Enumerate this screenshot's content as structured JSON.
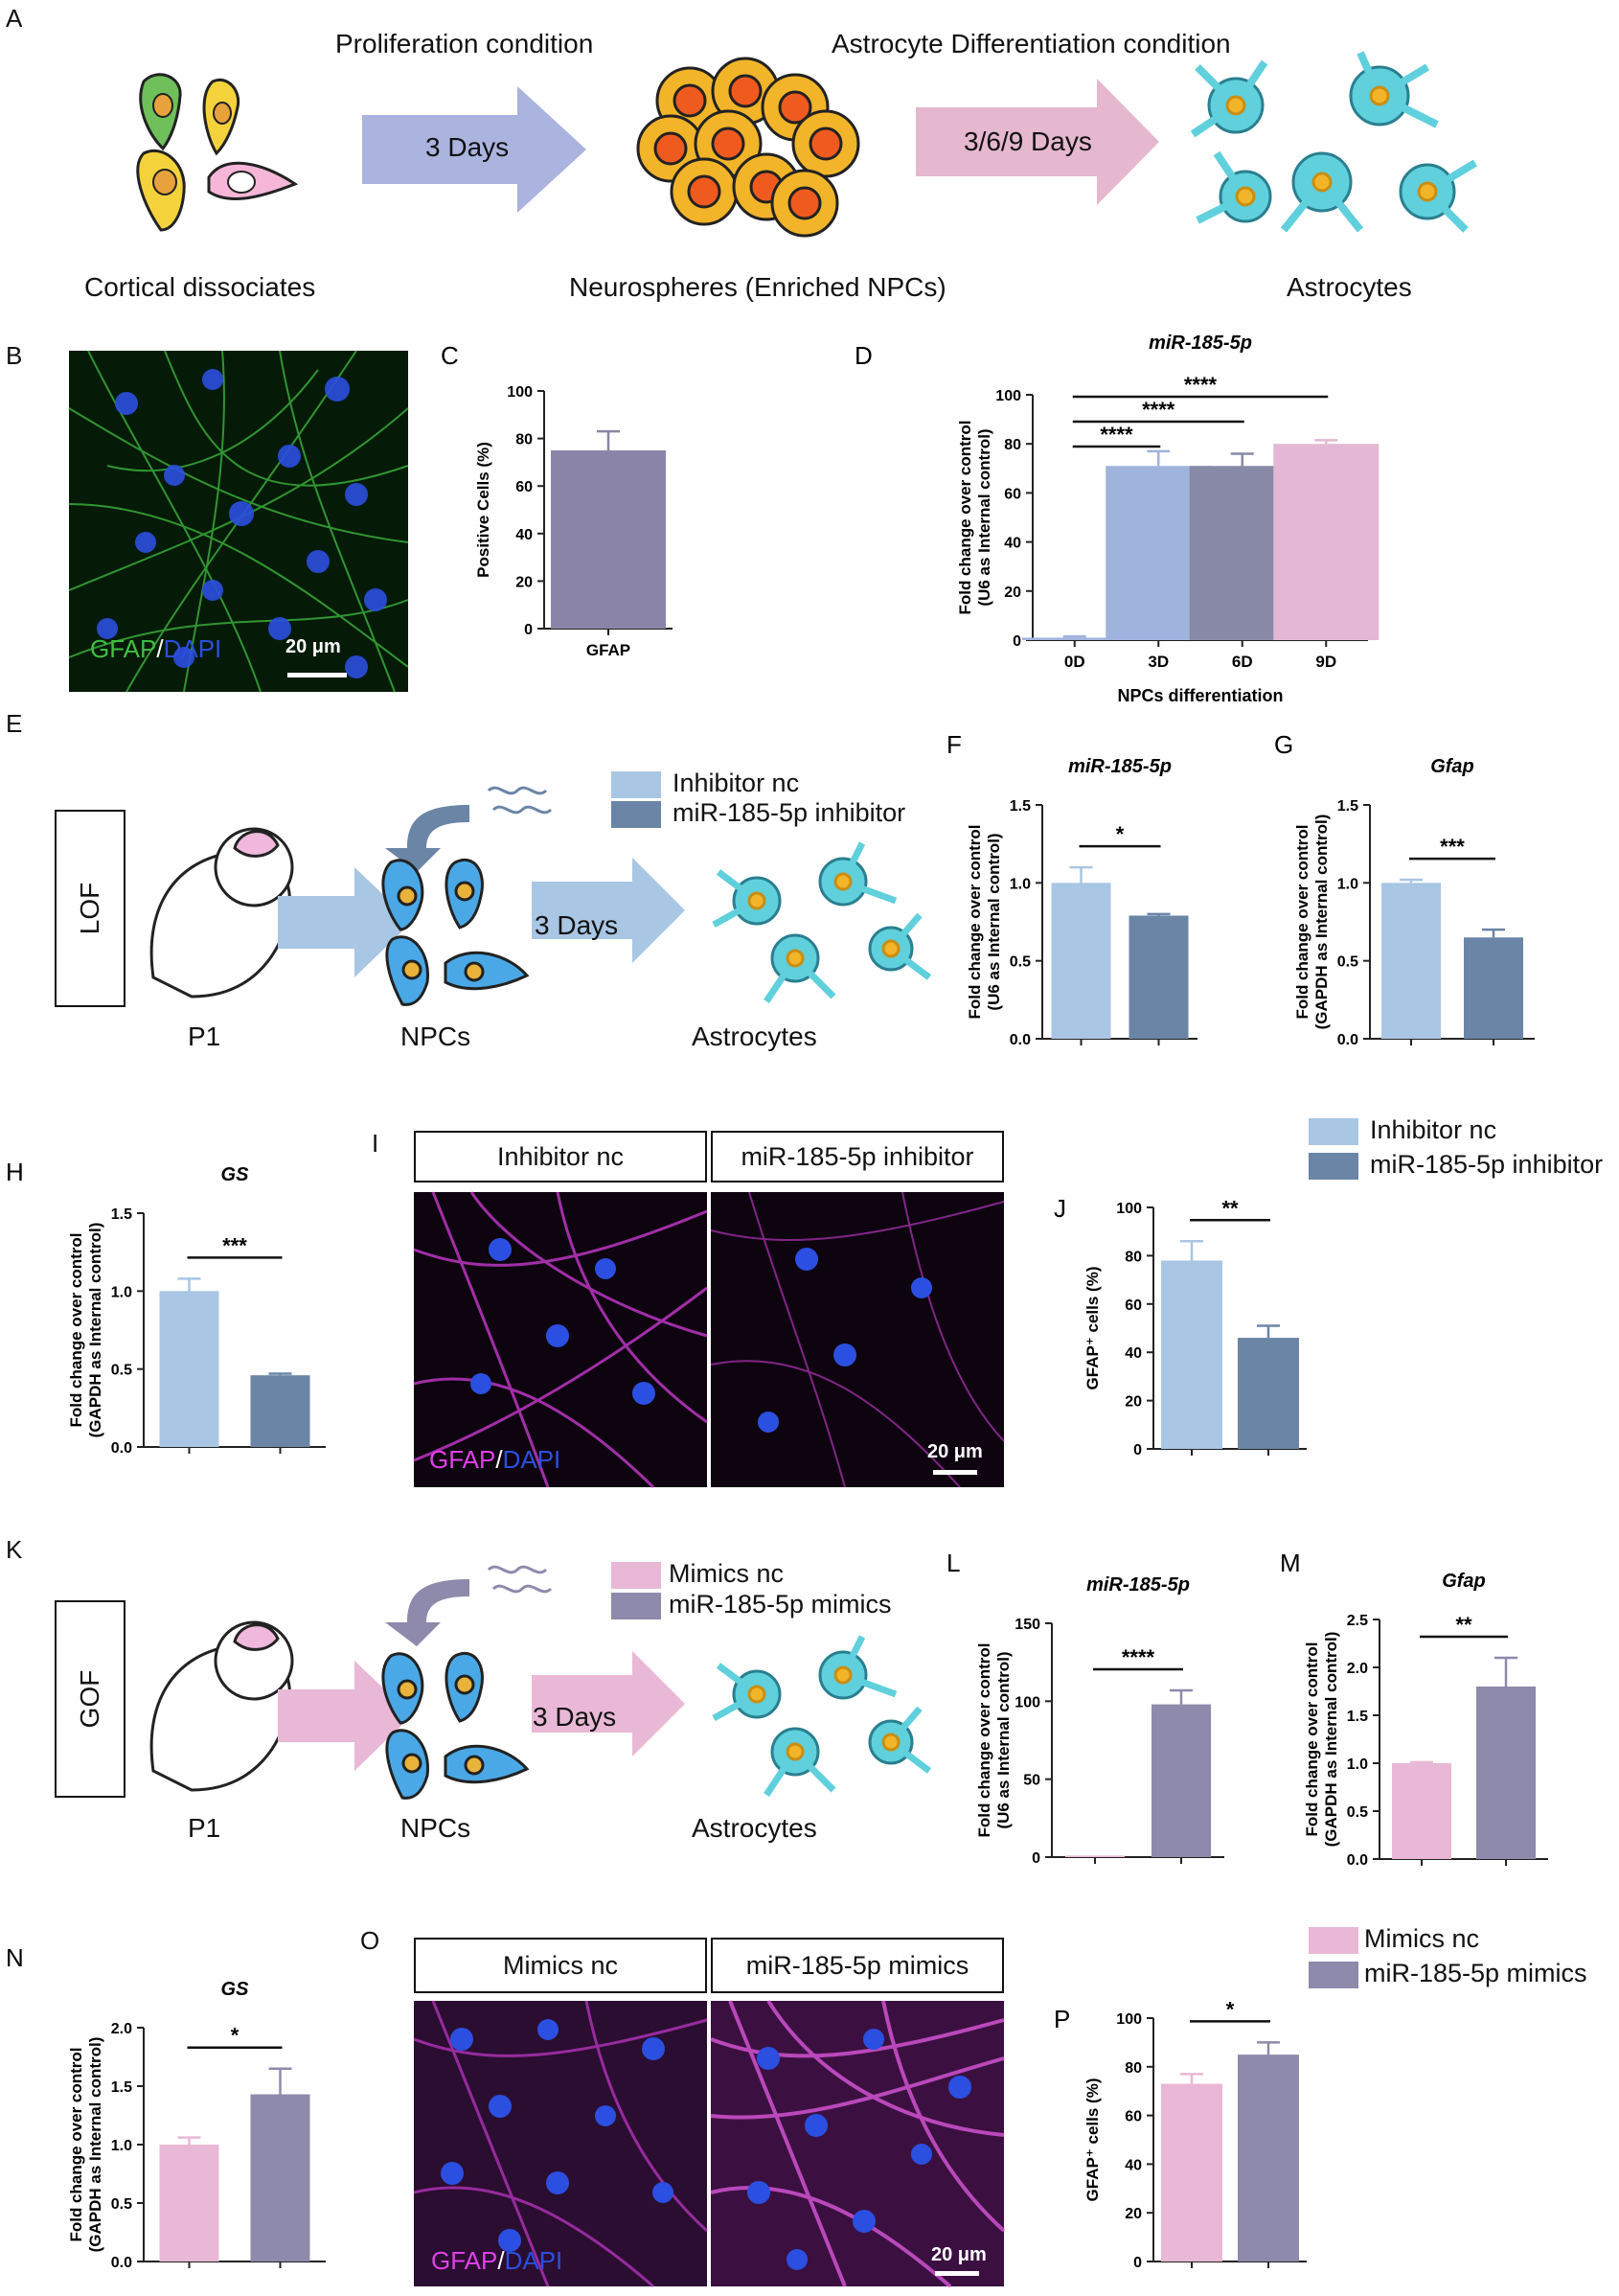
{
  "colors": {
    "light_blue": "#a9c6e4",
    "dark_blue": "#6a85a6",
    "pink": "#e9b8d6",
    "lavender": "#8e8aab",
    "gfap_purple": "#8a85a8",
    "d3": "#9fb3dc",
    "d6": "#898aa7",
    "d9": "#e4b8d4",
    "green": "#3fbf3f",
    "magenta": "#e040e8",
    "dapi": "#2b4fe0"
  },
  "panelA": {
    "label": "A",
    "step1_title": "Proliferation condition",
    "step1_arrow": "3 Days",
    "step2_title": "Astrocyte Differentiation condition",
    "step2_arrow": "3/6/9 Days",
    "cap1": "Cortical dissociates",
    "cap2": "Neurospheres (Enriched NPCs)",
    "cap3": "Astrocytes"
  },
  "panelB": {
    "label": "B",
    "stain_a": "GFAP",
    "slash": "/",
    "stain_b": "DAPI",
    "scale": "20 μm"
  },
  "panelE": {
    "label": "E",
    "mode": "LOF",
    "legend1": "Inhibitor nc",
    "legend2": "miR-185-5p inhibitor",
    "days": "3 Days",
    "cap_p1": "P1",
    "cap_npcs": "NPCs",
    "cap_astro": "Astrocytes"
  },
  "panelI": {
    "label": "I",
    "head1": "Inhibitor nc",
    "head2": "miR-185-5p inhibitor",
    "stain_a": "GFAP",
    "slash": "/",
    "stain_b": "DAPI",
    "scale": "20 μm"
  },
  "panelJleg": {
    "legend1": "Inhibitor nc",
    "legend2": "miR-185-5p inhibitor"
  },
  "panelK": {
    "label": "K",
    "mode": "GOF",
    "legend1": "Mimics nc",
    "legend2": "miR-185-5p mimics",
    "days": "3 Days",
    "cap_p1": "P1",
    "cap_npcs": "NPCs",
    "cap_astro": "Astrocytes"
  },
  "panelO": {
    "label": "O",
    "head1": "Mimics nc",
    "head2": "miR-185-5p mimics",
    "stain_a": "GFAP",
    "slash": "/",
    "stain_b": "DAPI",
    "scale": "20 μm"
  },
  "panelPleg": {
    "legend1": "Mimics nc",
    "legend2": "miR-185-5p mimics"
  },
  "chart_data": [
    {
      "id": "C",
      "label": "C",
      "type": "bar",
      "title": "",
      "ylabel": "Positive Cells (%)",
      "xlabel": "",
      "categories": [
        "GFAP"
      ],
      "values": [
        75
      ],
      "errors": [
        8
      ],
      "colors": [
        "#8a85a8"
      ],
      "ylim": [
        0,
        100
      ],
      "yticks": [
        "0",
        "20",
        "40",
        "60",
        "80",
        "100"
      ],
      "sig": []
    },
    {
      "id": "D",
      "label": "D",
      "type": "bar",
      "title": "miR-185-5p",
      "ylabel": "Fold change over control (U6 as Internal control)",
      "xlabel": "NPCs differentiation",
      "categories": [
        "0D",
        "3D",
        "6D",
        "9D"
      ],
      "values": [
        1,
        71,
        71,
        80
      ],
      "errors": [
        0.5,
        6,
        5,
        1.5
      ],
      "colors": [
        "#9fb3dc",
        "#9fb3dc",
        "#898aa7",
        "#e4b8d4"
      ],
      "ylim": [
        0,
        100
      ],
      "yticks": [
        "0",
        "20",
        "40",
        "60",
        "80",
        "100"
      ],
      "sig": [
        {
          "from": 0,
          "to": 3,
          "text": "****"
        },
        {
          "from": 0,
          "to": 2,
          "text": "****"
        },
        {
          "from": 0,
          "to": 1,
          "text": "****"
        }
      ]
    },
    {
      "id": "F",
      "label": "F",
      "type": "bar",
      "title": "miR-185-5p",
      "ylabel": "Fold change over control (U6 as Internal control)",
      "xlabel": "",
      "categories": [
        "Inhibitor nc",
        "miR-185-5p inhibitor"
      ],
      "values": [
        1.0,
        0.79
      ],
      "errors": [
        0.1,
        0.01
      ],
      "colors": [
        "#a9c6e4",
        "#6a85a6"
      ],
      "ylim": [
        0,
        1.5
      ],
      "yticks": [
        "0.0",
        "0.5",
        "1.0",
        "1.5"
      ],
      "sig": [
        {
          "from": 0,
          "to": 1,
          "text": "*"
        }
      ]
    },
    {
      "id": "G",
      "label": "G",
      "type": "bar",
      "title": "Gfap",
      "ylabel": "Fold change over control (GAPDH as Internal control)",
      "xlabel": "",
      "categories": [
        "Inhibitor nc",
        "miR-185-5p inhibitor"
      ],
      "values": [
        1.0,
        0.65
      ],
      "errors": [
        0.02,
        0.05
      ],
      "colors": [
        "#a9c6e4",
        "#6a85a6"
      ],
      "ylim": [
        0,
        1.5
      ],
      "yticks": [
        "0.0",
        "0.5",
        "1.0",
        "1.5"
      ],
      "sig": [
        {
          "from": 0,
          "to": 1,
          "text": "***"
        }
      ]
    },
    {
      "id": "H",
      "label": "H",
      "type": "bar",
      "title": "GS",
      "ylabel": "Fold change over control (GAPDH as Internal control)",
      "xlabel": "",
      "categories": [
        "Inhibitor nc",
        "miR-185-5p inhibitor"
      ],
      "values": [
        1.0,
        0.46
      ],
      "errors": [
        0.08,
        0.01
      ],
      "colors": [
        "#a9c6e4",
        "#6a85a6"
      ],
      "ylim": [
        0,
        1.5
      ],
      "yticks": [
        "0.0",
        "0.5",
        "1.0",
        "1.5"
      ],
      "sig": [
        {
          "from": 0,
          "to": 1,
          "text": "***"
        }
      ]
    },
    {
      "id": "J",
      "label": "J",
      "type": "bar",
      "title": "",
      "ylabel": "GFAP⁺ cells (%)",
      "xlabel": "",
      "categories": [
        "Inhibitor nc",
        "miR-185-5p inhibitor"
      ],
      "values": [
        78,
        46
      ],
      "errors": [
        8,
        5
      ],
      "colors": [
        "#a9c6e4",
        "#6a85a6"
      ],
      "ylim": [
        0,
        100
      ],
      "yticks": [
        "0",
        "20",
        "40",
        "60",
        "80",
        "100"
      ],
      "sig": [
        {
          "from": 0,
          "to": 1,
          "text": "**"
        }
      ]
    },
    {
      "id": "L",
      "label": "L",
      "type": "bar",
      "title": "miR-185-5p",
      "ylabel": "Fold change over control (U6 as Internal control)",
      "xlabel": "",
      "categories": [
        "Mimics nc",
        "miR-185-5p mimics"
      ],
      "values": [
        1,
        98
      ],
      "errors": [
        0,
        9
      ],
      "colors": [
        "#e9b8d6",
        "#8e8aab"
      ],
      "ylim": [
        0,
        150
      ],
      "yticks": [
        "0",
        "50",
        "100",
        "150"
      ],
      "sig": [
        {
          "from": 0,
          "to": 1,
          "text": "****"
        }
      ]
    },
    {
      "id": "M",
      "label": "M",
      "type": "bar",
      "title": "Gfap",
      "ylabel": "Fold change over control (GAPDH as Internal control)",
      "xlabel": "",
      "categories": [
        "Mimics nc",
        "miR-185-5p mimics"
      ],
      "values": [
        1.0,
        1.8
      ],
      "errors": [
        0.01,
        0.3
      ],
      "colors": [
        "#e9b8d6",
        "#8e8aab"
      ],
      "ylim": [
        0,
        2.5
      ],
      "yticks": [
        "0.0",
        "0.5",
        "1.0",
        "1.5",
        "2.0",
        "2.5"
      ],
      "sig": [
        {
          "from": 0,
          "to": 1,
          "text": "**"
        }
      ]
    },
    {
      "id": "N",
      "label": "N",
      "type": "bar",
      "title": "GS",
      "ylabel": "Fold change over control (GAPDH as Internal control)",
      "xlabel": "",
      "categories": [
        "Mimics nc",
        "miR-185-5p mimics"
      ],
      "values": [
        1.0,
        1.43
      ],
      "errors": [
        0.06,
        0.22
      ],
      "colors": [
        "#e9b8d6",
        "#8e8aab"
      ],
      "ylim": [
        0,
        2.0
      ],
      "yticks": [
        "0.0",
        "0.5",
        "1.0",
        "1.5",
        "2.0"
      ],
      "sig": [
        {
          "from": 0,
          "to": 1,
          "text": "*"
        }
      ]
    },
    {
      "id": "P",
      "label": "P",
      "type": "bar",
      "title": "",
      "ylabel": "GFAP⁺ cells (%)",
      "xlabel": "",
      "categories": [
        "Mimics nc",
        "miR-185-5p mimics"
      ],
      "values": [
        73,
        85
      ],
      "errors": [
        4,
        5
      ],
      "colors": [
        "#e9b8d6",
        "#8e8aab"
      ],
      "ylim": [
        0,
        100
      ],
      "yticks": [
        "0",
        "20",
        "40",
        "60",
        "80",
        "100"
      ],
      "sig": [
        {
          "from": 0,
          "to": 1,
          "text": "*"
        }
      ]
    }
  ]
}
